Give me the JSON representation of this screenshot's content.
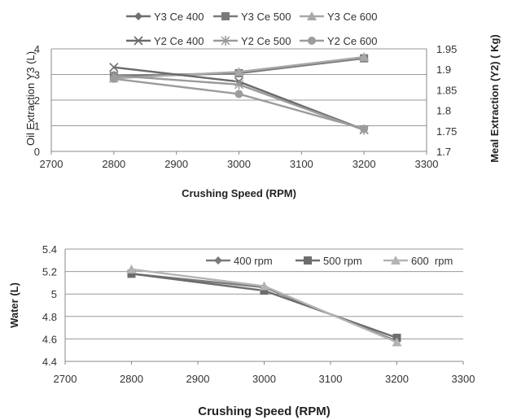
{
  "chart_data": [
    {
      "type": "line",
      "title": "",
      "xlabel": "Crushing Speed (RPM)",
      "ylabel": "Oil Extraction Y3 (L)",
      "y2label": "Meal Extraction (Y2) ( Kg)",
      "xlim": [
        2700,
        3300
      ],
      "ylim": [
        0,
        4
      ],
      "y2lim": [
        1.7,
        1.95
      ],
      "x_ticks": [
        "2700",
        "2800",
        "2900",
        "3000",
        "3100",
        "3200",
        "3300"
      ],
      "y_ticks": [
        "0",
        "1",
        "2",
        "3",
        "4"
      ],
      "y2_ticks": [
        "1.7",
        "1.75",
        "1.8",
        "1.85",
        "1.9",
        "1.95"
      ],
      "grid": "horizontal",
      "legend_position": "top",
      "x": [
        2800,
        3000,
        3200
      ],
      "series": [
        {
          "name": "Y3 Ce 400",
          "axis": "left",
          "marker": "diamond",
          "color": "#6f6f6f",
          "values": [
            2.9,
            3.05,
            3.65
          ]
        },
        {
          "name": "Y3 Ce 500",
          "axis": "left",
          "marker": "square",
          "color": "#7a7a7a",
          "values": [
            2.95,
            3.05,
            3.63
          ]
        },
        {
          "name": "Y3 Ce 600",
          "axis": "left",
          "marker": "triangle",
          "color": "#a8a8a8",
          "values": [
            2.85,
            3.1,
            3.68
          ]
        },
        {
          "name": "Y2 Ce 400",
          "axis": "right",
          "marker": "x",
          "color": "#6a6a6a",
          "values": [
            1.905,
            1.87,
            1.753
          ]
        },
        {
          "name": "Y2 Ce 500",
          "axis": "right",
          "marker": "star",
          "color": "#9a9a9a",
          "values": [
            1.885,
            1.863,
            1.752
          ]
        },
        {
          "name": "Y2 Ce 600",
          "axis": "right",
          "marker": "circle",
          "color": "#9c9c9c",
          "values": [
            1.877,
            1.84,
            1.755
          ]
        }
      ]
    },
    {
      "type": "line",
      "title": "",
      "xlabel": "Crushing Speed (RPM)",
      "ylabel": "Water (L)",
      "xlim": [
        2700,
        3300
      ],
      "ylim": [
        4.4,
        5.4
      ],
      "x_ticks": [
        "2700",
        "2800",
        "2900",
        "3000",
        "3100",
        "3200",
        "3300"
      ],
      "y_ticks": [
        "4.4",
        "4.6",
        "4.8",
        "5",
        "5.2",
        "5.4"
      ],
      "grid": "horizontal",
      "legend_position": "top-right",
      "x": [
        2800,
        3000,
        3200
      ],
      "series": [
        {
          "name": "400 rpm",
          "marker": "diamond",
          "color": "#7b7b7b",
          "values": [
            5.18,
            5.06,
            4.58
          ]
        },
        {
          "name": "500 rpm",
          "marker": "square",
          "color": "#6d6d6d",
          "values": [
            5.18,
            5.03,
            4.61
          ]
        },
        {
          "name": "600  rpm",
          "marker": "triangle",
          "color": "#b3b3b3",
          "values": [
            5.22,
            5.07,
            4.57
          ]
        }
      ]
    }
  ]
}
